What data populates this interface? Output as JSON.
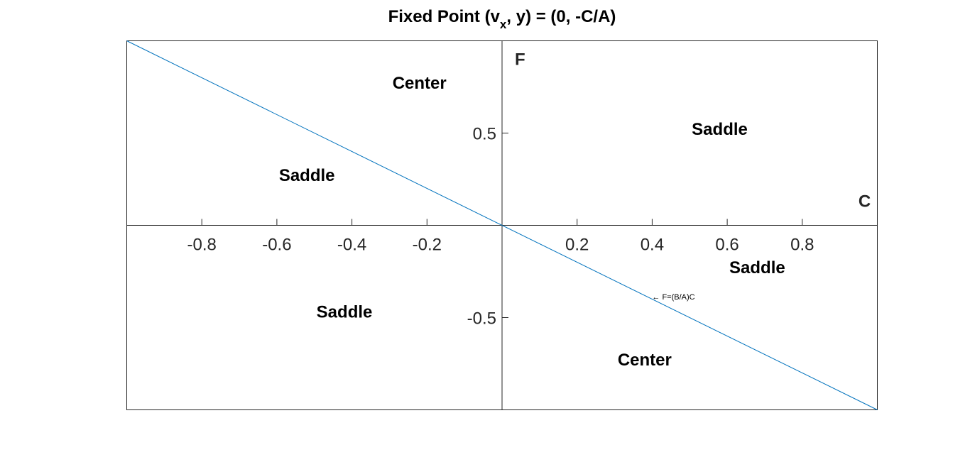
{
  "chart_data": {
    "type": "line",
    "title": {
      "pre": "Fixed Point (v",
      "sub": "x",
      "post": ", y) = (0, -C/A)"
    },
    "xlabel": "C",
    "ylabel": "F",
    "xlim": [
      -1,
      1
    ],
    "ylim": [
      -1,
      1
    ],
    "xticks": [
      -0.8,
      -0.6,
      -0.4,
      -0.2,
      0.2,
      0.4,
      0.6,
      0.8
    ],
    "xtick_labels": [
      "-0.8",
      "-0.6",
      "-0.4",
      "-0.2",
      "0.2",
      "0.4",
      "0.6",
      "0.8"
    ],
    "yticks": [
      0.5,
      -0.5
    ],
    "ytick_labels": [
      "0.5",
      "-0.5"
    ],
    "grid": false,
    "series": [
      {
        "x": [
          -1,
          1
        ],
        "y": [
          1,
          -1
        ],
        "color": "#0072BD"
      }
    ],
    "annotations": [
      {
        "text": "Center",
        "x": -0.22,
        "y": 0.74
      },
      {
        "text": "Saddle",
        "x": 0.58,
        "y": 0.49
      },
      {
        "text": "Saddle",
        "x": -0.52,
        "y": 0.24
      },
      {
        "text": "Saddle",
        "x": 0.68,
        "y": -0.26
      },
      {
        "text": "Saddle",
        "x": -0.42,
        "y": -0.5
      },
      {
        "text": "Center",
        "x": 0.38,
        "y": -0.76
      }
    ],
    "arrow_note": {
      "text": "← F=(B/A)C",
      "x": 0.4,
      "y": -0.41
    }
  }
}
